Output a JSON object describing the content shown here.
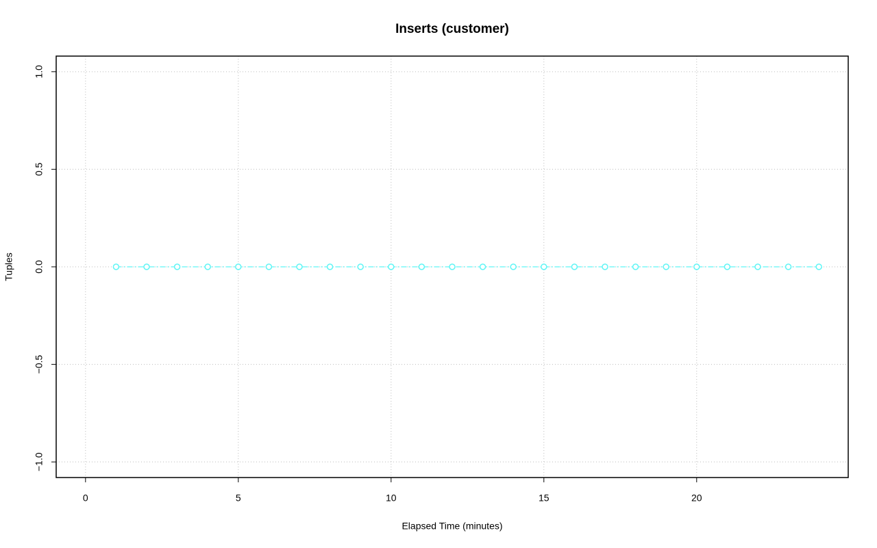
{
  "chart_data": {
    "type": "line",
    "title": "Inserts (customer)",
    "xlabel": "Elapsed Time (minutes)",
    "ylabel": "Tuples",
    "x": [
      1,
      2,
      3,
      4,
      5,
      6,
      7,
      8,
      9,
      10,
      11,
      12,
      13,
      14,
      15,
      16,
      17,
      18,
      19,
      20,
      21,
      22,
      23,
      24
    ],
    "values": [
      0,
      0,
      0,
      0,
      0,
      0,
      0,
      0,
      0,
      0,
      0,
      0,
      0,
      0,
      0,
      0,
      0,
      0,
      0,
      0,
      0,
      0,
      0,
      0
    ],
    "color": "#5ef5f5",
    "xlim": [
      -0.96,
      24.96
    ],
    "ylim": [
      -1.08,
      1.08
    ],
    "xticks": [
      0,
      5,
      10,
      15,
      20
    ],
    "yticks": [
      {
        "value": -1,
        "label": "−1.0"
      },
      {
        "value": -0.5,
        "label": "−0.5"
      },
      {
        "value": 0,
        "label": "0.0"
      },
      {
        "value": 0.5,
        "label": "0.5"
      },
      {
        "value": 1,
        "label": "1.0"
      }
    ],
    "grid": true
  }
}
